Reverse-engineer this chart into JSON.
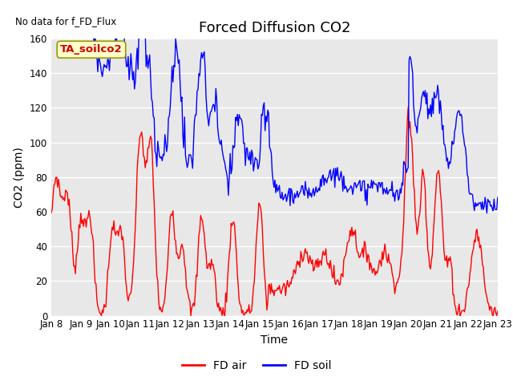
{
  "title": "Forced Diffusion CO2",
  "xlabel": "Time",
  "ylabel": "CO2 (ppm)",
  "no_data_text": "No data for f_FD_Flux",
  "annotation_text": "TA_soilco2",
  "ylim": [
    0,
    160
  ],
  "yticks": [
    0,
    20,
    40,
    60,
    80,
    100,
    120,
    140,
    160
  ],
  "xtick_labels": [
    "Jan 8",
    "Jan 9",
    "Jan 10",
    "Jan 11",
    "Jan 12",
    "Jan 13",
    "Jan 14",
    "Jan 15",
    "Jan 16",
    "Jan 17",
    "Jan 18",
    "Jan 19",
    "Jan 20",
    "Jan 21",
    "Jan 22",
    "Jan 23"
  ],
  "bg_color": "#e8e8e8",
  "line_color_red": "#ff0000",
  "line_color_blue": "#0000ff",
  "legend_labels": [
    "FD air",
    "FD soil"
  ],
  "title_fontsize": 13,
  "label_fontsize": 10,
  "tick_fontsize": 8.5,
  "n_points": 500
}
